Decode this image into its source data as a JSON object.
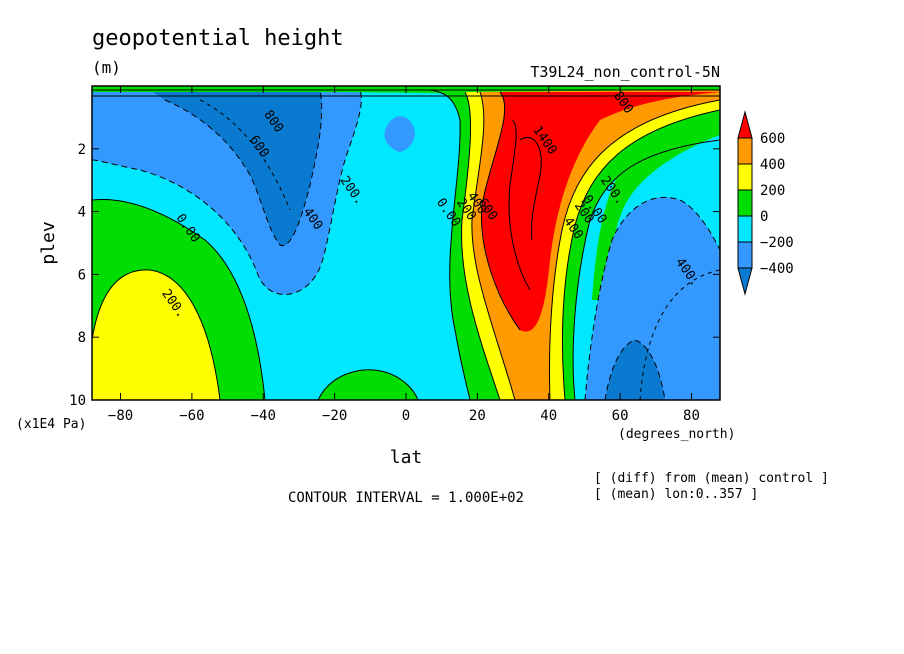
{
  "chart_data": {
    "type": "heatmap",
    "subtype": "filled-contour",
    "title": "geopotential height",
    "units": "(m)",
    "run_label": "T39L24_non_control-5N",
    "xlabel": "lat",
    "x_units": "(degrees_north)",
    "ylabel": "plev",
    "y_units": "(x1E4 Pa)",
    "xlim": [
      -88,
      88
    ],
    "ylim": [
      0,
      10
    ],
    "x_ticks": [
      -80,
      -60,
      -40,
      -20,
      0,
      20,
      40,
      60,
      80
    ],
    "x_tick_labels": [
      "−80",
      "−60",
      "−40",
      "−20",
      "0",
      "20",
      "40",
      "60",
      "80"
    ],
    "y_ticks": [
      2,
      4,
      6,
      8,
      10
    ],
    "y_tick_labels": [
      "2",
      "4",
      "6",
      "8",
      "10"
    ],
    "contour_interval_text": "CONTOUR INTERVAL = 1.000E+02",
    "notes": [
      "[ (diff) from (mean) control ]",
      "[ (mean) lon:0..357 ]"
    ],
    "colorbar": {
      "labels": [
        "600",
        "400",
        "200",
        "0",
        "−200",
        "−400"
      ],
      "colors": [
        "#0a7ad0",
        "#3399ff",
        "#00e8ff",
        "#00dd00",
        "#ffff00",
        "#ff9a00",
        "#ff0000"
      ]
    },
    "contour_labels": [
      {
        "text": "800",
        "lat": -38,
        "plev": 1.2
      },
      {
        "text": "600",
        "lat": -42,
        "plev": 2.0
      },
      {
        "text": "400",
        "lat": -27,
        "plev": 4.3
      },
      {
        "text": "200.",
        "lat": -16,
        "plev": 3.4
      },
      {
        "text": "0.00",
        "lat": -62,
        "plev": 4.6
      },
      {
        "text": "200.",
        "lat": -66,
        "plev": 7.0
      },
      {
        "text": "0.00",
        "lat": 11,
        "plev": 4.1
      },
      {
        "text": "200",
        "lat": 16,
        "plev": 4.0
      },
      {
        "text": "400",
        "lat": 19,
        "plev": 3.8
      },
      {
        "text": "600",
        "lat": 22,
        "plev": 4.0
      },
      {
        "text": "1400",
        "lat": 38,
        "plev": 1.8
      },
      {
        "text": "400",
        "lat": 46,
        "plev": 4.6
      },
      {
        "text": "200",
        "lat": 49,
        "plev": 4.1
      },
      {
        "text": "0.00",
        "lat": 52,
        "plev": 4.0
      },
      {
        "text": "200.",
        "lat": 57,
        "plev": 3.4
      },
      {
        "text": "400.",
        "lat": 78,
        "plev": 6.0
      },
      {
        "text": "800",
        "lat": 60,
        "plev": 0.6
      }
    ]
  }
}
